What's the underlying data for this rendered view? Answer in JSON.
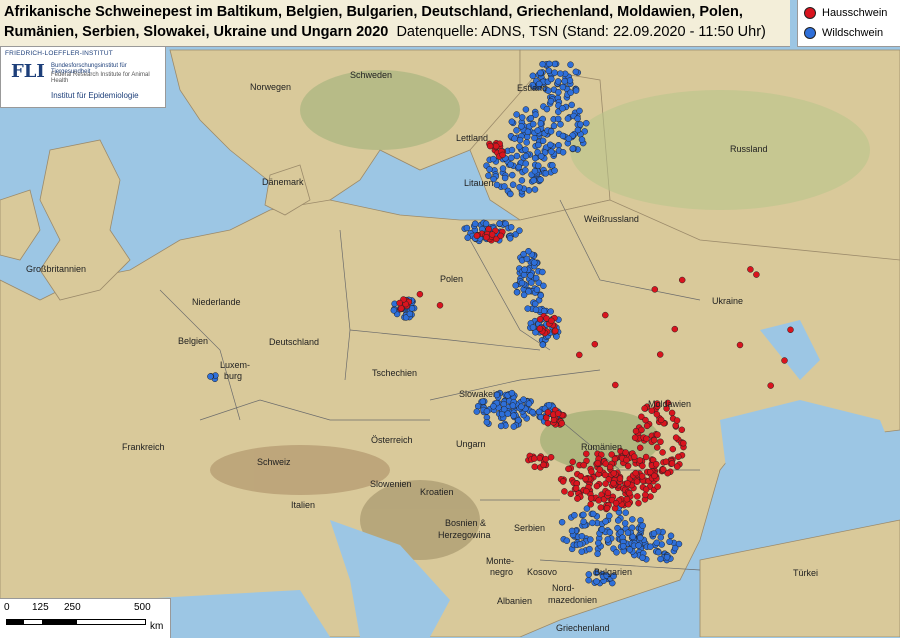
{
  "title": {
    "line1": "Afrikanische Schweinepest im Baltikum, Belgien, Bulgarien, Deutschland, Griechenland, Moldawien, Polen,",
    "line2": "Rumänien, Serbien, Slowakei, Ukraine und Ungarn 2020",
    "source": "Datenquelle: ADNS, TSN (Stand: 22.09.2020 - 11:50 Uhr)"
  },
  "legend": {
    "items": [
      {
        "label": "Hausschwein",
        "color": "#d9141e"
      },
      {
        "label": "Wildschwein",
        "color": "#2e6fd9"
      }
    ]
  },
  "logo": {
    "institute": "FRIEDRICH-LOEFFLER-INSTITUT",
    "mark": "FLI",
    "sub1": "Bundesforschungsinstitut für Tiergesundheit",
    "sub2": "Federal Research Institute for Animal Health",
    "department": "Institut für Epidemiologie"
  },
  "scale": {
    "ticks": [
      "0",
      "125",
      "250",
      "500"
    ],
    "unit": "km"
  },
  "labels": {
    "schweden": "Schweden",
    "norwegen": "Norwegen",
    "estland": "Estland",
    "lettland": "Lettland",
    "litauen": "Litauen",
    "russland": "Russland",
    "daenemark": "Dänemark",
    "weissrussland": "Weißrussland",
    "grossbritannien": "Großbritannien",
    "polen": "Polen",
    "niederlande": "Niederlande",
    "deutschland": "Deutschland",
    "belgien": "Belgien",
    "luxemburg1": "Luxem-",
    "luxemburg2": "burg",
    "ukraine": "Ukraine",
    "tschechien": "Tschechien",
    "slowakei": "Slowakei",
    "moldawien": "Moldawien",
    "frankreich": "Frankreich",
    "oesterreich": "Österreich",
    "ungarn": "Ungarn",
    "rumaenien": "Rumänien",
    "schweiz": "Schweiz",
    "slowenien": "Slowenien",
    "kroatien": "Kroatien",
    "italien": "Italien",
    "bosnien1": "Bosnien &",
    "bosnien2": "Herzegowina",
    "serbien": "Serbien",
    "montenegro1": "Monte-",
    "montenegro2": "negro",
    "kosovo": "Kosovo",
    "bulgarien": "Bulgarien",
    "nord1": "Nord-",
    "nord2": "mazedonien",
    "albanien": "Albanien",
    "tuerkei": "Türkei",
    "griechenland": "Griechenland"
  },
  "outbreaks": {
    "domestic_count_visible": "many",
    "wild_count_visible": "many"
  }
}
